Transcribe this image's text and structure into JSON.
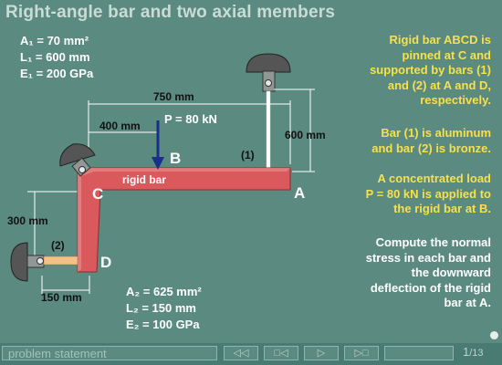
{
  "title": "Right-angle bar and two axial members",
  "bar1_props": {
    "A1": "A₁ = 70 mm²",
    "L1": "L₁ = 600 mm",
    "E1": "E₁ = 200 GPa"
  },
  "bar2_props": {
    "A2": "A₂ = 625 mm²",
    "L2": "L₂ = 150 mm",
    "E2": "E₂ = 100 GPa"
  },
  "description": {
    "p1": [
      "Rigid bar ABCD is",
      "pinned at C and",
      "supported by bars (1)",
      "and (2) at A and D,",
      "respectively."
    ],
    "p2": [
      "Bar (1) is aluminum",
      "and bar (2) is bronze."
    ],
    "p3": [
      "A concentrated load",
      "P = 80 kN is applied to",
      "the rigid bar at B."
    ]
  },
  "task": [
    "Compute the normal",
    "stress in each bar and",
    "the downward",
    "deflection of the rigid",
    "bar at A."
  ],
  "diagram": {
    "dim_750": "750 mm",
    "dim_400": "400 mm",
    "dim_600": "600 mm",
    "dim_300": "300 mm",
    "dim_150": "150 mm",
    "load_label": "P = 80 kN",
    "rigid_bar_label": "rigid bar",
    "bar1_label": "(1)",
    "bar2_label": "(2)",
    "point_A": "A",
    "point_B": "B",
    "point_C": "C",
    "point_D": "D"
  },
  "nav": {
    "section": "problem statement",
    "first": "◁◁",
    "prev": "□◁",
    "next": "▷",
    "last": "▷□",
    "page_current": "1",
    "page_total": "13"
  },
  "colors": {
    "background": "#5b8a81",
    "rigid_bar": "#d9595d",
    "highlight": "#f7e04a",
    "load_arrow": "#1b2e8a"
  }
}
